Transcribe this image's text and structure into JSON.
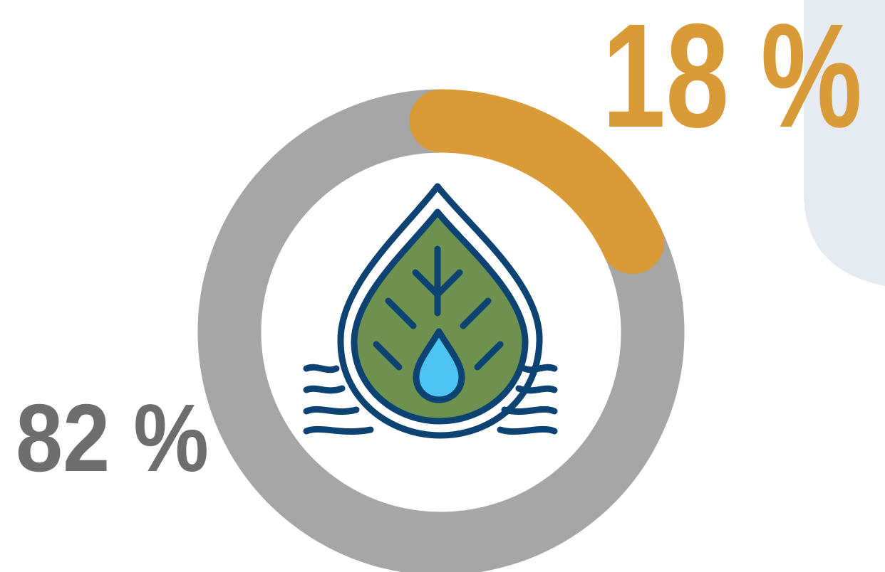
{
  "chart_data": {
    "type": "donut",
    "values": [
      18,
      82
    ],
    "value_labels": [
      "18 %",
      "82 %"
    ],
    "colors": [
      "#d99a38",
      "#a6a6a6"
    ],
    "label_colors": [
      "#d99a38",
      "#6e6e6e"
    ]
  }
}
